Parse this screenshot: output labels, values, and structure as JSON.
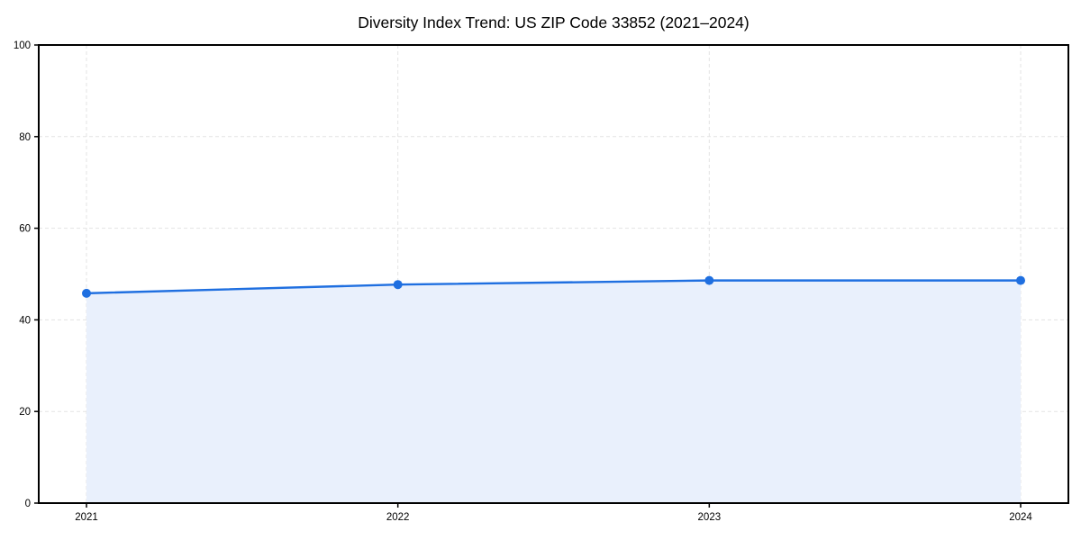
{
  "chart_data": {
    "type": "line",
    "title": "Diversity Index Trend: US ZIP Code 33852 (2021–2024)",
    "categories": [
      "2021",
      "2022",
      "2023",
      "2024"
    ],
    "series": [
      {
        "name": "Diversity Index",
        "values": [
          45.8,
          47.7,
          48.6,
          48.6
        ]
      }
    ],
    "xlabel": "",
    "ylabel": "",
    "ylim": [
      0,
      100
    ],
    "yticks": [
      0,
      20,
      40,
      60,
      80,
      100
    ],
    "grid": true,
    "grid_style": "dashed",
    "legend": "none",
    "area_fill": true,
    "marker": "circle",
    "colors": {
      "line": "#1f6fe0",
      "area": "#e9f0fc",
      "grid": "#e3e3e3",
      "axis": "#000000",
      "text": "#000000",
      "background": "#ffffff"
    }
  }
}
